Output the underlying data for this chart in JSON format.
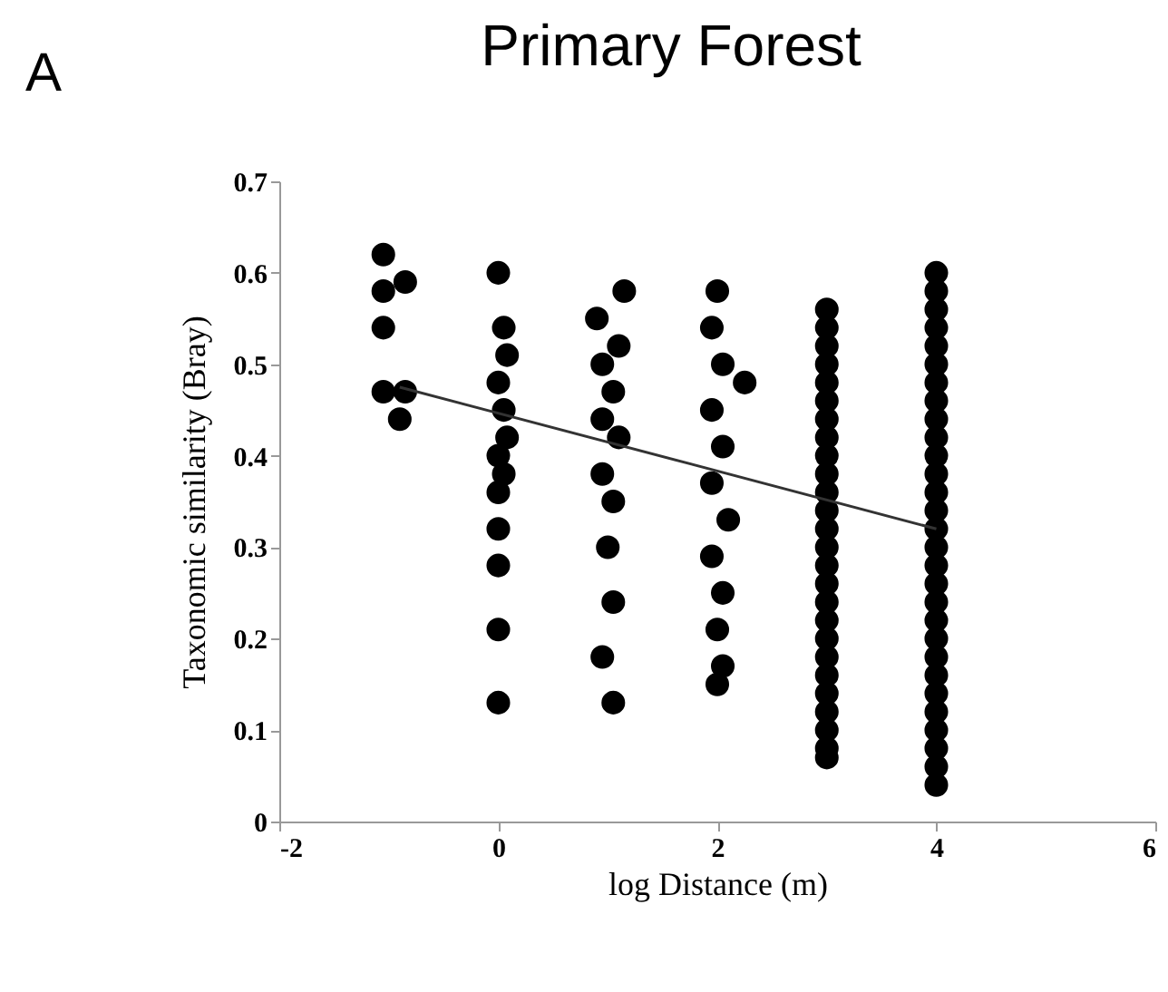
{
  "chart_data": {
    "type": "scatter",
    "title": "Primary Forest",
    "xlabel": "log Distance (m)",
    "ylabel": "Taxonomic similarity (Bray)",
    "annotations": [
      "A"
    ],
    "xlim": [
      -2,
      6
    ],
    "xticks": [
      -2,
      0,
      2,
      4,
      6
    ],
    "ylim": [
      0,
      0.7
    ],
    "yticks": [
      0,
      0.1,
      0.2,
      0.3,
      0.4,
      0.5,
      0.6,
      0.7
    ],
    "grid": false,
    "series": [
      {
        "marker": "circle",
        "color": "#000000",
        "x": [
          -1.05,
          -1.05,
          -0.85,
          -1.05,
          -1.05,
          -0.85,
          -0.9,
          0,
          0.05,
          0.08,
          0,
          0.05,
          0.08,
          0,
          0.05,
          0,
          0,
          0,
          0,
          0,
          1.15,
          0.9,
          1.1,
          0.95,
          1.05,
          0.95,
          1.1,
          0.95,
          1.05,
          1.0,
          1.05,
          0.95,
          1.05,
          2.0,
          1.95,
          2.05,
          2.25,
          1.95,
          2.05,
          1.95,
          2.1,
          1.95,
          2.05,
          2.0,
          2.05,
          2.0,
          3,
          3,
          3,
          3,
          3,
          3,
          3,
          3,
          3,
          3,
          3,
          3,
          3,
          3,
          3,
          3,
          3,
          3,
          3,
          3,
          3,
          3,
          3,
          3,
          3,
          3,
          4,
          4,
          4,
          4,
          4,
          4,
          4,
          4,
          4,
          4,
          4,
          4,
          4,
          4,
          4,
          4,
          4,
          4,
          4,
          4,
          4,
          4,
          4,
          4,
          4,
          4,
          4,
          4,
          4
        ],
        "values": [
          0.62,
          0.58,
          0.59,
          0.54,
          0.47,
          0.47,
          0.44,
          0.6,
          0.54,
          0.51,
          0.48,
          0.45,
          0.42,
          0.4,
          0.38,
          0.36,
          0.32,
          0.28,
          0.21,
          0.13,
          0.58,
          0.55,
          0.52,
          0.5,
          0.47,
          0.44,
          0.42,
          0.38,
          0.35,
          0.3,
          0.24,
          0.18,
          0.13,
          0.58,
          0.54,
          0.5,
          0.48,
          0.45,
          0.41,
          0.37,
          0.33,
          0.29,
          0.25,
          0.21,
          0.17,
          0.15,
          0.56,
          0.54,
          0.52,
          0.5,
          0.48,
          0.46,
          0.44,
          0.42,
          0.4,
          0.38,
          0.36,
          0.34,
          0.32,
          0.3,
          0.28,
          0.26,
          0.24,
          0.22,
          0.2,
          0.18,
          0.16,
          0.14,
          0.12,
          0.1,
          0.08,
          0.07,
          0.6,
          0.58,
          0.56,
          0.54,
          0.52,
          0.5,
          0.48,
          0.46,
          0.44,
          0.42,
          0.4,
          0.38,
          0.36,
          0.34,
          0.32,
          0.3,
          0.28,
          0.26,
          0.24,
          0.22,
          0.2,
          0.18,
          0.16,
          0.14,
          0.12,
          0.1,
          0.08,
          0.06,
          0.04
        ]
      },
      {
        "type": "line",
        "marker": "none",
        "line_style": "solid",
        "color": "#333333",
        "x": [
          -0.9,
          4
        ],
        "values": [
          0.475,
          0.32
        ]
      }
    ]
  }
}
